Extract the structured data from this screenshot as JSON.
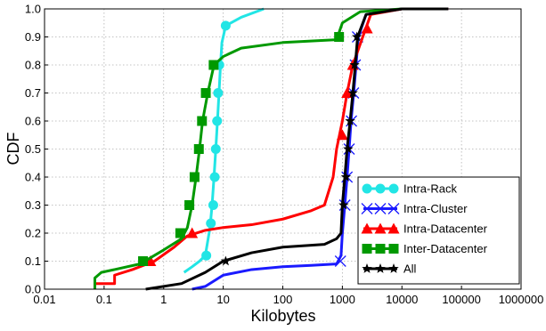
{
  "chart_data": {
    "type": "line",
    "xlabel": "Kilobytes",
    "ylabel": "CDF",
    "xscale": "log",
    "xlim": [
      0.01,
      1000000
    ],
    "ylim": [
      0,
      1
    ],
    "x_ticks": [
      0.01,
      0.1,
      1,
      10,
      100,
      1000,
      10000,
      100000,
      1000000
    ],
    "x_tick_labels": [
      "0.01",
      "0.1",
      "1",
      "10",
      "100",
      "1000",
      "10000",
      "100000",
      "1000000"
    ],
    "y_ticks": [
      0,
      0.1,
      0.2,
      0.3,
      0.4,
      0.5,
      0.6,
      0.7,
      0.8,
      0.9,
      1.0
    ],
    "y_tick_labels": [
      "0.0",
      "0.1",
      "0.2",
      "0.3",
      "0.4",
      "0.5",
      "0.6",
      "0.7",
      "0.8",
      "0.9",
      "1.0"
    ],
    "grid": true,
    "legend_position": "bottom-right",
    "series": [
      {
        "name": "Intra-Rack",
        "color": "#22e5e5",
        "marker": "circle",
        "points": [
          [
            2.2,
            0.06
          ],
          [
            3,
            0.08
          ],
          [
            4,
            0.1
          ],
          [
            5,
            0.12
          ],
          [
            6,
            0.22
          ],
          [
            6.5,
            0.3
          ],
          [
            7,
            0.4
          ],
          [
            7.5,
            0.5
          ],
          [
            8,
            0.6
          ],
          [
            8.5,
            0.7
          ],
          [
            9,
            0.8
          ],
          [
            9.5,
            0.88
          ],
          [
            11,
            0.94
          ],
          [
            20,
            0.97
          ],
          [
            48,
            1.0
          ]
        ],
        "marker_points": [
          [
            5.2,
            0.12
          ],
          [
            6.2,
            0.235
          ],
          [
            6.8,
            0.3
          ],
          [
            7.2,
            0.4
          ],
          [
            7.5,
            0.5
          ],
          [
            7.9,
            0.6
          ],
          [
            8.2,
            0.7
          ],
          [
            8.6,
            0.8
          ],
          [
            11,
            0.94
          ]
        ]
      },
      {
        "name": "Intra-Cluster",
        "color": "#1a1aff",
        "marker": "x",
        "points": [
          [
            3,
            0.0
          ],
          [
            5,
            0.01
          ],
          [
            10,
            0.05
          ],
          [
            30,
            0.07
          ],
          [
            100,
            0.08
          ],
          [
            300,
            0.085
          ],
          [
            800,
            0.09
          ],
          [
            950,
            0.12
          ],
          [
            1000,
            0.2
          ],
          [
            1100,
            0.3
          ],
          [
            1200,
            0.4
          ],
          [
            1300,
            0.5
          ],
          [
            1400,
            0.6
          ],
          [
            1550,
            0.7
          ],
          [
            1700,
            0.8
          ],
          [
            1850,
            0.9
          ],
          [
            2500,
            0.98
          ],
          [
            10000,
            1.0
          ],
          [
            60000,
            1.0
          ]
        ],
        "marker_points": [
          [
            930,
            0.1
          ],
          [
            1100,
            0.3
          ],
          [
            1200,
            0.4
          ],
          [
            1300,
            0.5
          ],
          [
            1420,
            0.6
          ],
          [
            1540,
            0.7
          ],
          [
            1650,
            0.8
          ],
          [
            1800,
            0.9
          ]
        ]
      },
      {
        "name": "Intra-Datacenter",
        "color": "#ff0000",
        "marker": "triangle",
        "points": [
          [
            0.07,
            0.0
          ],
          [
            0.07,
            0.02
          ],
          [
            0.15,
            0.02
          ],
          [
            0.15,
            0.05
          ],
          [
            0.3,
            0.07
          ],
          [
            0.7,
            0.1
          ],
          [
            1.5,
            0.15
          ],
          [
            2.5,
            0.19
          ],
          [
            5,
            0.21
          ],
          [
            10,
            0.22
          ],
          [
            30,
            0.23
          ],
          [
            100,
            0.25
          ],
          [
            300,
            0.28
          ],
          [
            500,
            0.3
          ],
          [
            700,
            0.4
          ],
          [
            800,
            0.5
          ],
          [
            1000,
            0.6
          ],
          [
            1200,
            0.7
          ],
          [
            1500,
            0.8
          ],
          [
            2200,
            0.9
          ],
          [
            3000,
            0.98
          ],
          [
            10000,
            1.0
          ],
          [
            60000,
            1.0
          ]
        ],
        "marker_points": [
          [
            0.6,
            0.1
          ],
          [
            3,
            0.2
          ],
          [
            1000,
            0.55
          ],
          [
            1200,
            0.7
          ],
          [
            1500,
            0.8
          ],
          [
            2600,
            0.93
          ]
        ]
      },
      {
        "name": "Inter-Datacenter",
        "color": "#009900",
        "marker": "square",
        "points": [
          [
            0.07,
            0.0
          ],
          [
            0.07,
            0.04
          ],
          [
            0.09,
            0.06
          ],
          [
            0.15,
            0.07
          ],
          [
            0.4,
            0.09
          ],
          [
            1,
            0.14
          ],
          [
            2,
            0.18
          ],
          [
            2.5,
            0.22
          ],
          [
            3,
            0.3
          ],
          [
            3.5,
            0.4
          ],
          [
            4,
            0.5
          ],
          [
            4.5,
            0.6
          ],
          [
            5.5,
            0.7
          ],
          [
            7,
            0.8
          ],
          [
            10,
            0.83
          ],
          [
            20,
            0.86
          ],
          [
            100,
            0.88
          ],
          [
            800,
            0.89
          ],
          [
            1000,
            0.95
          ],
          [
            2000,
            0.99
          ],
          [
            10000,
            1.0
          ]
        ],
        "marker_points": [
          [
            0.45,
            0.1
          ],
          [
            1.9,
            0.2
          ],
          [
            2.7,
            0.3
          ],
          [
            3.3,
            0.4
          ],
          [
            3.9,
            0.5
          ],
          [
            4.4,
            0.6
          ],
          [
            5.1,
            0.7
          ],
          [
            6.9,
            0.8
          ],
          [
            880,
            0.9
          ]
        ]
      },
      {
        "name": "All",
        "color": "#000000",
        "marker": "star",
        "points": [
          [
            0.5,
            0.0
          ],
          [
            2,
            0.02
          ],
          [
            5,
            0.06
          ],
          [
            10,
            0.1
          ],
          [
            30,
            0.13
          ],
          [
            100,
            0.15
          ],
          [
            500,
            0.16
          ],
          [
            800,
            0.18
          ],
          [
            950,
            0.2
          ],
          [
            1000,
            0.3
          ],
          [
            1100,
            0.4
          ],
          [
            1200,
            0.5
          ],
          [
            1350,
            0.6
          ],
          [
            1500,
            0.7
          ],
          [
            1650,
            0.8
          ],
          [
            1800,
            0.9
          ],
          [
            2500,
            0.98
          ],
          [
            10000,
            1.0
          ],
          [
            60000,
            1.0
          ]
        ],
        "marker_points": [
          [
            11,
            0.1
          ],
          [
            1050,
            0.3
          ],
          [
            1150,
            0.4
          ],
          [
            1250,
            0.5
          ],
          [
            1350,
            0.6
          ],
          [
            1500,
            0.7
          ],
          [
            1600,
            0.8
          ],
          [
            1750,
            0.9
          ]
        ]
      }
    ]
  }
}
